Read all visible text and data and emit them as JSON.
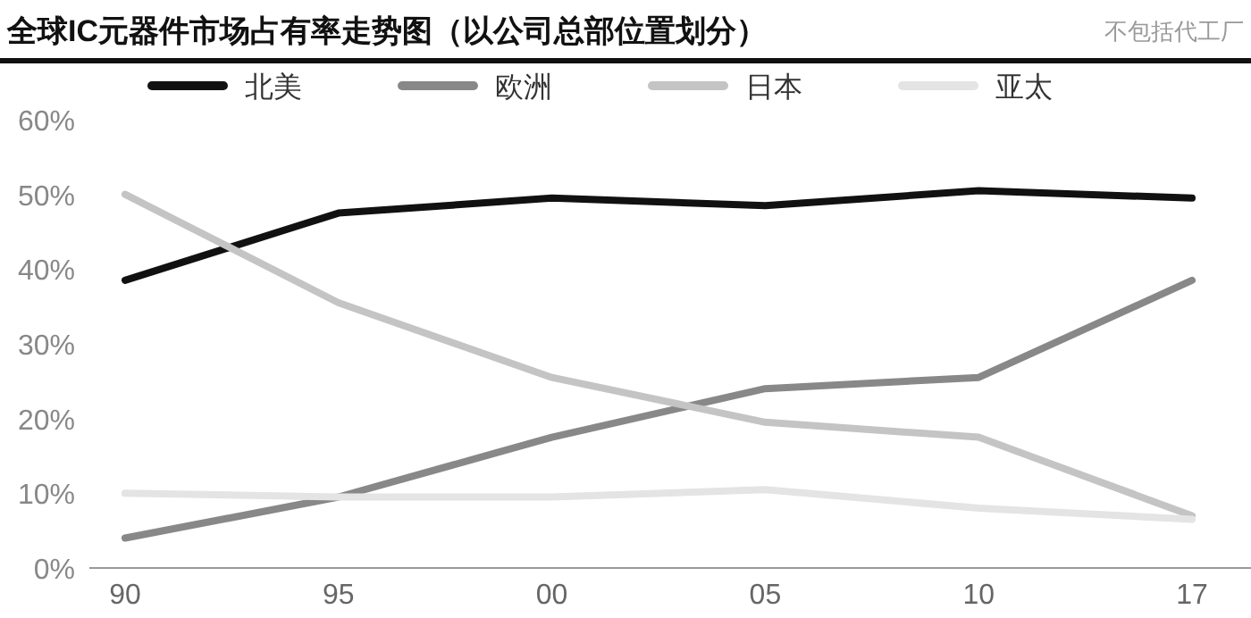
{
  "chart_data": {
    "type": "line",
    "title": "全球IC元器件市场占有率走势图（以公司总部位置划分）",
    "annotations": [
      "不包括代工厂"
    ],
    "categories": [
      "90",
      "95",
      "00",
      "05",
      "10",
      "17"
    ],
    "series": [
      {
        "name": "北美",
        "color": "#111111",
        "values": [
          38.5,
          47.5,
          49.5,
          48.5,
          50.5,
          49.5
        ]
      },
      {
        "name": "欧洲",
        "color": "#888888",
        "values": [
          4,
          9.5,
          17.5,
          24,
          25.5,
          38.5
        ]
      },
      {
        "name": "日本",
        "color": "#c4c4c4",
        "values": [
          50,
          35.5,
          25.5,
          19.5,
          17.5,
          7
        ]
      },
      {
        "name": "亚太",
        "color": "#e4e4e4",
        "values": [
          10,
          9.5,
          9.5,
          10.5,
          8,
          6.5
        ]
      }
    ],
    "ylim": [
      0,
      60
    ],
    "yticks": [
      {
        "value": 0,
        "label": "0%"
      },
      {
        "value": 10,
        "label": "10%"
      },
      {
        "value": 20,
        "label": "20%"
      },
      {
        "value": 30,
        "label": "30%"
      },
      {
        "value": 40,
        "label": "40%"
      },
      {
        "value": 50,
        "label": "50%"
      },
      {
        "value": 60,
        "label": "60%"
      }
    ],
    "legend": "top"
  }
}
